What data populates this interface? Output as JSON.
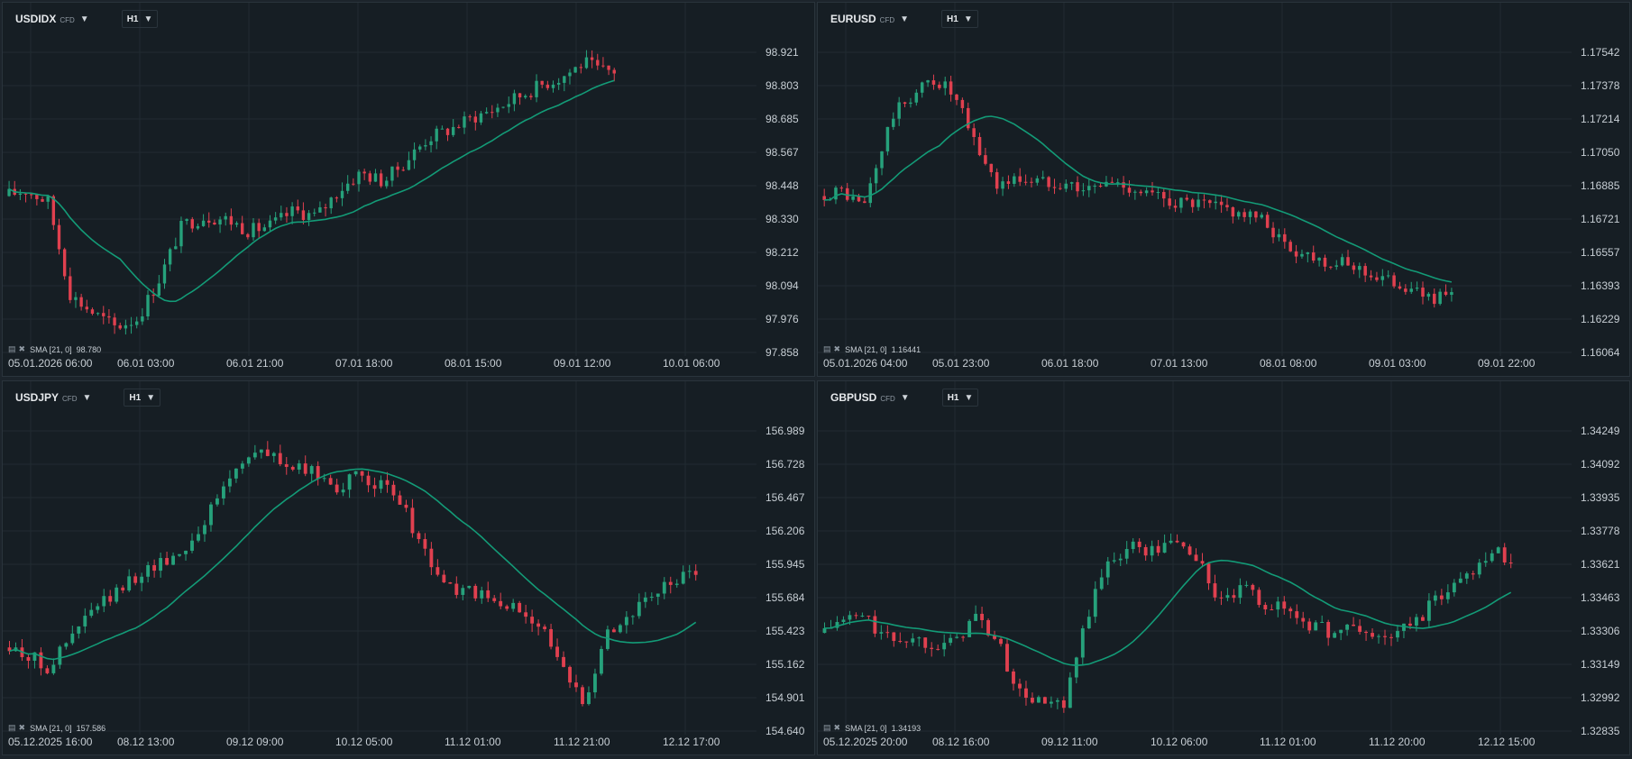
{
  "colors": {
    "background": "#161e24",
    "grid": "#212b32",
    "up": "#26a17b",
    "down": "#e0404f",
    "sma": "#139b77",
    "text": "#c7ced4"
  },
  "icons": [
    "bars-icon",
    "close-icon",
    "chevron-down-icon"
  ],
  "panels": [
    {
      "symbol": "USDIDX",
      "kind": "CFD",
      "timeframe": "H1",
      "sma_label": "SMA [21, 0]",
      "sma_value": "98.780",
      "y_ticks": [
        "98.921",
        "98.803",
        "98.685",
        "98.567",
        "98.448",
        "98.330",
        "98.212",
        "98.094",
        "97.976",
        "97.858"
      ],
      "x_ticks": [
        "05.01.2026  06:00",
        "06.01  03:00",
        "06.01  21:00",
        "07.01  18:00",
        "08.01  15:00",
        "09.01  12:00",
        "10.01  06:00"
      ]
    },
    {
      "symbol": "EURUSD",
      "kind": "CFD",
      "timeframe": "H1",
      "sma_label": "SMA [21, 0]",
      "sma_value": "1.16441",
      "y_ticks": [
        "1.17542",
        "1.17378",
        "1.17214",
        "1.17050",
        "1.16885",
        "1.16721",
        "1.16557",
        "1.16393",
        "1.16229",
        "1.16064"
      ],
      "x_ticks": [
        "05.01.2026  04:00",
        "05.01  23:00",
        "06.01  18:00",
        "07.01  13:00",
        "08.01  08:00",
        "09.01  03:00",
        "09.01  22:00"
      ]
    },
    {
      "symbol": "USDJPY",
      "kind": "CFD",
      "timeframe": "H1",
      "sma_label": "SMA [21, 0]",
      "sma_value": "157.586",
      "y_ticks": [
        "156.989",
        "156.728",
        "156.467",
        "156.206",
        "155.945",
        "155.684",
        "155.423",
        "155.162",
        "154.901",
        "154.640"
      ],
      "x_ticks": [
        "05.12.2025  16:00",
        "08.12  13:00",
        "09.12  09:00",
        "10.12  05:00",
        "11.12  01:00",
        "11.12  21:00",
        "12.12  17:00"
      ]
    },
    {
      "symbol": "GBPUSD",
      "kind": "CFD",
      "timeframe": "H1",
      "sma_label": "SMA [21, 0]",
      "sma_value": "1.34193",
      "y_ticks": [
        "1.34249",
        "1.34092",
        "1.33935",
        "1.33778",
        "1.33621",
        "1.33463",
        "1.33306",
        "1.33149",
        "1.32992",
        "1.32835"
      ],
      "x_ticks": [
        "05.12.2025  20:00",
        "08.12  16:00",
        "09.12  11:00",
        "10.12  06:00",
        "11.12  01:00",
        "11.12  20:00",
        "12.12  15:00"
      ]
    }
  ]
}
